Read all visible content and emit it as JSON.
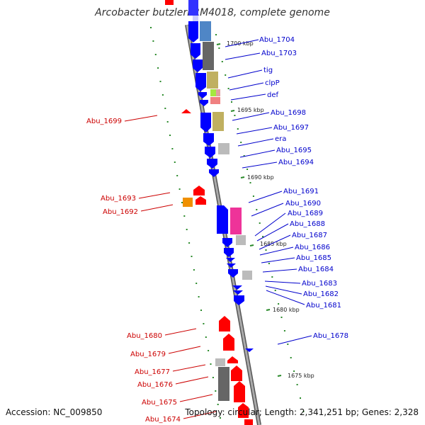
{
  "title": "Arcobacter butzleri RM4018, complete genome",
  "footer": {
    "accession": "Accession: NC_009850",
    "stats": "Topology: circular; Length: 2,341,251 bp; Genes: 2,328"
  },
  "colors": {
    "forward_strand": "#0000ff",
    "reverse_strand": "#ff0000",
    "forward_label": "#0000cc",
    "reverse_label": "#cc0000",
    "backbone": "#888888",
    "ticks": "#2a8a2a"
  },
  "axis": {
    "unit": "kbp",
    "ticks": [
      {
        "label": "1700 kbp"
      },
      {
        "label": "1695 kbp"
      },
      {
        "label": "1690 kbp"
      },
      {
        "label": "1685 kbp"
      },
      {
        "label": "1680 kbp"
      },
      {
        "label": "1675 kbp"
      }
    ]
  },
  "forward_genes": [
    "Abu_1704",
    "Abu_1703",
    "tig",
    "clpP",
    "def",
    "Abu_1698",
    "Abu_1697",
    "era",
    "Abu_1695",
    "Abu_1694",
    "Abu_1691",
    "Abu_1690",
    "Abu_1689",
    "Abu_1688",
    "Abu_1687",
    "Abu_1686",
    "Abu_1685",
    "Abu_1684",
    "Abu_1683",
    "Abu_1682",
    "Abu_1681",
    "Abu_1678"
  ],
  "reverse_genes": [
    "Abu_1699",
    "Abu_1693",
    "Abu_1692",
    "Abu_1680",
    "Abu_1679",
    "Abu_1677",
    "Abu_1676",
    "Abu_1675",
    "Abu_1674"
  ]
}
